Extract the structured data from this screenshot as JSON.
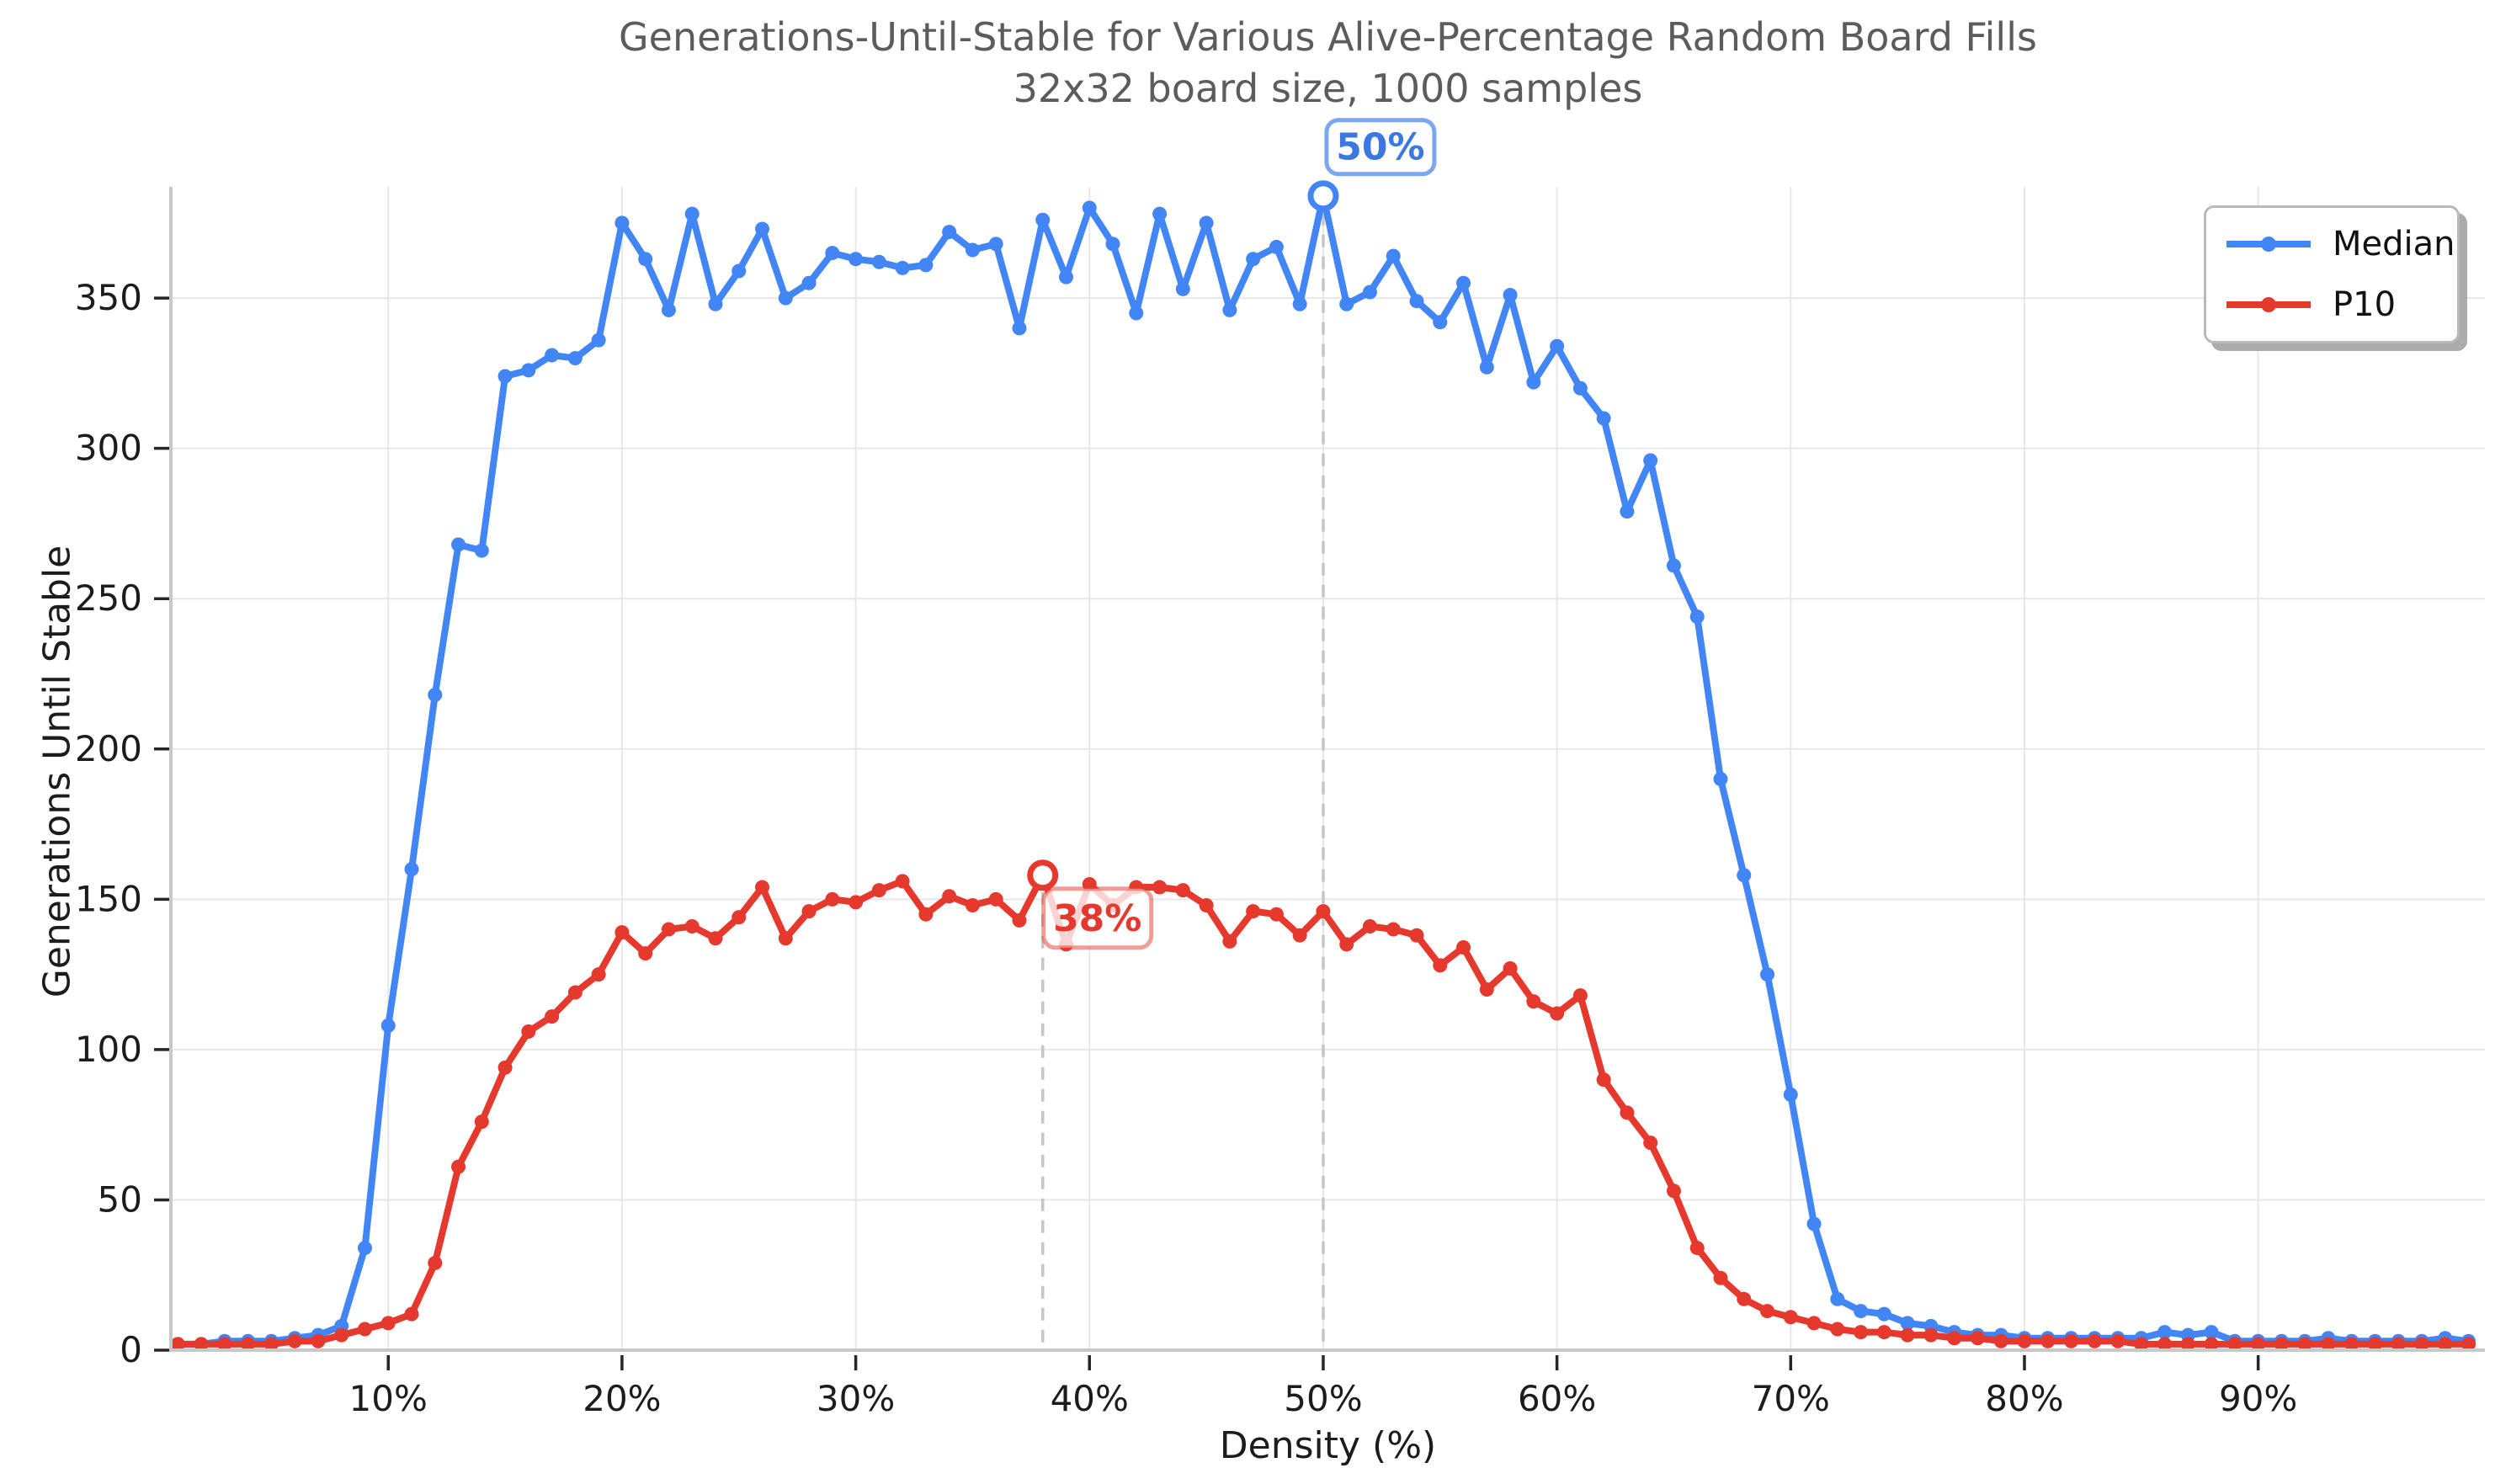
{
  "chart_data": {
    "type": "line",
    "title": "Generations-Until-Stable for Various Alive-Percentage Random Board Fills",
    "subtitle": "32x32 board size, 1000 samples",
    "xlabel": "Density (%)",
    "ylabel": "Generations Until Stable",
    "xlim": [
      0.7,
      99.7
    ],
    "ylim": [
      0,
      387
    ],
    "grid": true,
    "legend_position": "upper right",
    "x_ticks": [
      10,
      20,
      30,
      40,
      50,
      60,
      70,
      80,
      90
    ],
    "x_tick_suffix": "%",
    "y_ticks": [
      0,
      50,
      100,
      150,
      200,
      250,
      300,
      350
    ],
    "x": [
      1,
      2,
      3,
      4,
      5,
      6,
      7,
      8,
      9,
      10,
      11,
      12,
      13,
      14,
      15,
      16,
      17,
      18,
      19,
      20,
      21,
      22,
      23,
      24,
      25,
      26,
      27,
      28,
      29,
      30,
      31,
      32,
      33,
      34,
      35,
      36,
      37,
      38,
      39,
      40,
      41,
      42,
      43,
      44,
      45,
      46,
      47,
      48,
      49,
      50,
      51,
      52,
      53,
      54,
      55,
      56,
      57,
      58,
      59,
      60,
      61,
      62,
      63,
      64,
      65,
      66,
      67,
      68,
      69,
      70,
      71,
      72,
      73,
      74,
      75,
      76,
      77,
      78,
      79,
      80,
      81,
      82,
      83,
      84,
      85,
      86,
      87,
      88,
      89,
      90,
      91,
      92,
      93,
      94,
      95,
      96,
      97,
      98,
      99
    ],
    "series": [
      {
        "name": "Median",
        "color": "#4285f4",
        "values": [
          2,
          2,
          3,
          3,
          3,
          4,
          5,
          8,
          34,
          108,
          160,
          218,
          268,
          266,
          324,
          326,
          331,
          330,
          336,
          375,
          363,
          346,
          378,
          348,
          359,
          373,
          350,
          355,
          365,
          363,
          362,
          360,
          361,
          372,
          366,
          368,
          340,
          376,
          357,
          380,
          368,
          345,
          378,
          353,
          375,
          346,
          363,
          367,
          348,
          384,
          348,
          352,
          364,
          349,
          342,
          355,
          327,
          351,
          322,
          334,
          320,
          310,
          279,
          296,
          261,
          244,
          190,
          158,
          125,
          85,
          42,
          17,
          13,
          12,
          9,
          8,
          6,
          5,
          5,
          4,
          4,
          4,
          4,
          4,
          4,
          6,
          5,
          6,
          3,
          3,
          3,
          3,
          4,
          3,
          3,
          3,
          3,
          4,
          3
        ]
      },
      {
        "name": "P10",
        "color": "#e5392e",
        "values": [
          2,
          2,
          2,
          2,
          2,
          3,
          3,
          5,
          7,
          9,
          12,
          29,
          61,
          76,
          94,
          106,
          111,
          119,
          125,
          139,
          132,
          140,
          141,
          137,
          144,
          154,
          137,
          146,
          150,
          149,
          153,
          156,
          145,
          151,
          148,
          150,
          143,
          158,
          135,
          155,
          148,
          154,
          154,
          153,
          148,
          136,
          146,
          145,
          138,
          146,
          135,
          141,
          140,
          138,
          128,
          134,
          120,
          127,
          116,
          112,
          118,
          90,
          79,
          69,
          53,
          34,
          24,
          17,
          13,
          11,
          9,
          7,
          6,
          6,
          5,
          5,
          4,
          4,
          3,
          3,
          3,
          3,
          3,
          3,
          2,
          2,
          2,
          2,
          2,
          2,
          2,
          2,
          2,
          2,
          2,
          2,
          2,
          2,
          2
        ]
      }
    ],
    "annotations": [
      {
        "label": "50%",
        "x": 50,
        "y": 384,
        "series": "Median",
        "color": "#3b78e0"
      },
      {
        "label": "38%",
        "x": 38,
        "y": 158,
        "series": "P10",
        "color": "#e5392e"
      }
    ]
  },
  "legend": {
    "items": [
      {
        "label": "Median"
      },
      {
        "label": "P10"
      }
    ]
  }
}
